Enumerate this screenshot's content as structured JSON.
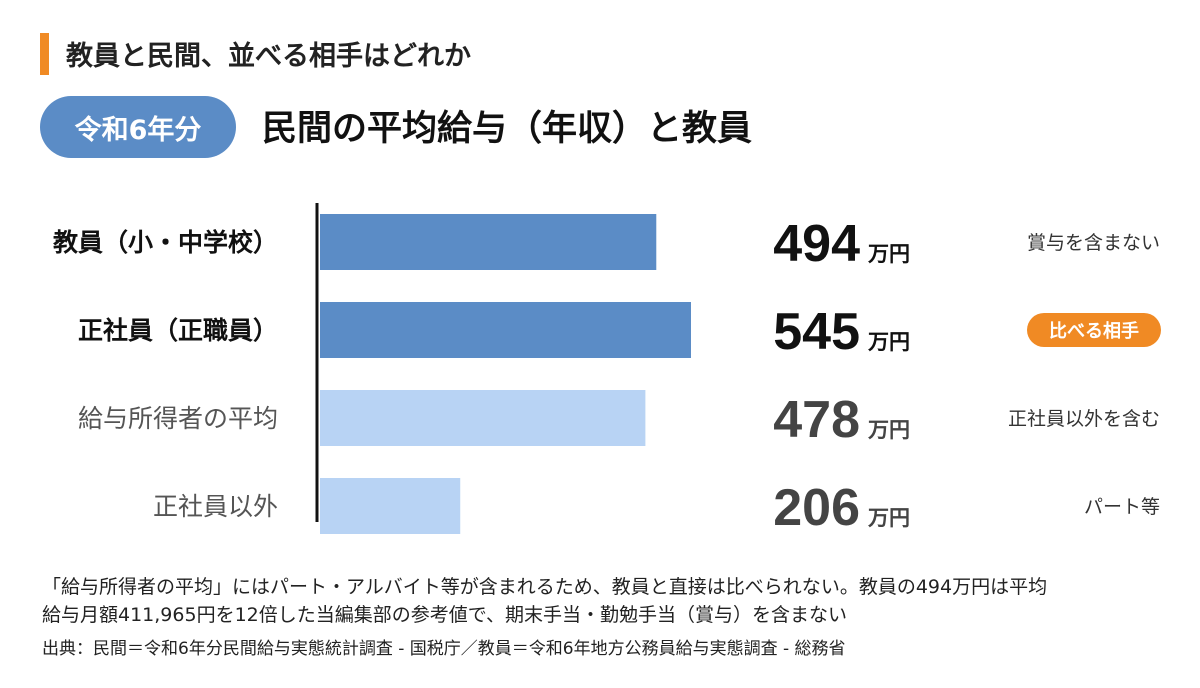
{
  "header": {
    "subtitle": "教員と民間、並べる相手はどれか",
    "pill": "令和6年分",
    "title": "民間の平均給与（年収）と教員"
  },
  "chart_data": {
    "type": "bar",
    "orientation": "horizontal",
    "categories": [
      "教員（小・中学校）",
      "正社員（正職員）",
      "給与所得者の平均",
      "正社員以外"
    ],
    "values": [
      494,
      545,
      478,
      206
    ],
    "unit": "万円",
    "notes": [
      "賞与を含まない",
      "比べる相手",
      "正社員以外を含む",
      "パート等"
    ],
    "highlight_note_index": 1,
    "bar_colors": [
      "#5b8cc6",
      "#5b8cc6",
      "#b8d3f4",
      "#b8d3f4"
    ],
    "value_colors": [
      "#111111",
      "#111111",
      "#444444",
      "#444444"
    ],
    "label_colors": [
      "#111111",
      "#111111",
      "#555555",
      "#555555"
    ],
    "badge_color": "#f08a24",
    "xlim": [
      0,
      545
    ],
    "grid": false
  },
  "footnote": {
    "line1": "「給与所得者の平均」にはパート・アルバイト等が含まれるため、教員と直接は比べられない。教員の494万円は平均",
    "line2": "給与月額411,965円を12倍した当編集部の参考値で、期末手当・勤勉手当（賞与）を含まない",
    "source": "出典：民間＝令和6年分民間給与実態統計調査 - 国税庁／教員＝令和6年地方公務員給与実態調査 - 総務省"
  },
  "colors": {
    "accent": "#f08a24",
    "pill": "#5b8cc6"
  }
}
